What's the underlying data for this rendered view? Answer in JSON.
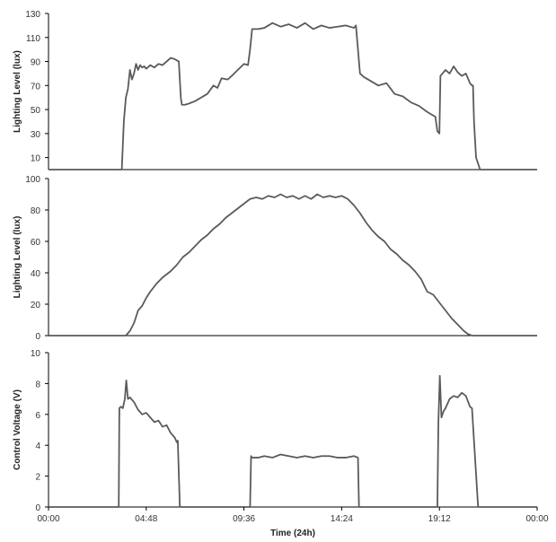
{
  "chart_data": [
    {
      "type": "line",
      "ylabel": "Lighting Level (lux)",
      "ylim": [
        0,
        130
      ],
      "yticks": [
        10,
        30,
        50,
        70,
        90,
        110,
        130
      ],
      "xlim": [
        0,
        24
      ],
      "grid": false,
      "series": [
        {
          "x": [
            0,
            3.6,
            3.62,
            3.7,
            3.8,
            3.9,
            4.0,
            4.1,
            4.2,
            4.3,
            4.4,
            4.5,
            4.6,
            4.7,
            4.8,
            5.0,
            5.2,
            5.4,
            5.6,
            5.8,
            6.0,
            6.2,
            6.4,
            6.5,
            6.55,
            6.7,
            6.9,
            7.2,
            7.5,
            7.8,
            8.1,
            8.3,
            8.5,
            8.8,
            9.0,
            9.3,
            9.6,
            9.8,
            9.9,
            10.0,
            10.3,
            10.6,
            11.0,
            11.4,
            11.8,
            12.2,
            12.6,
            13.0,
            13.4,
            13.8,
            14.2,
            14.6,
            15.0,
            15.1,
            15.2,
            15.3,
            15.5,
            15.8,
            16.2,
            16.6,
            17.0,
            17.4,
            17.8,
            18.2,
            18.6,
            19.0,
            19.1,
            19.2,
            19.25,
            19.5,
            19.7,
            19.9,
            20.1,
            20.3,
            20.5,
            20.7,
            20.8,
            20.85,
            20.9,
            21.0,
            21.2,
            24
          ],
          "y": [
            0,
            0,
            8,
            40,
            60,
            67,
            83,
            75,
            80,
            88,
            83,
            87,
            85,
            86,
            84,
            87,
            85,
            88,
            87,
            90,
            93,
            92,
            90,
            60,
            54,
            54,
            55,
            57,
            60,
            63,
            70,
            68,
            76,
            75,
            78,
            83,
            88,
            87,
            100,
            117,
            117,
            118,
            122,
            119,
            121,
            118,
            122,
            117,
            120,
            118,
            119,
            120,
            118,
            120,
            100,
            80,
            77,
            74,
            70,
            72,
            63,
            61,
            56,
            53,
            48,
            44,
            32,
            30,
            78,
            83,
            80,
            86,
            81,
            78,
            80,
            72,
            70,
            70,
            40,
            10,
            0,
            0
          ]
        }
      ]
    },
    {
      "type": "line",
      "ylabel": "Lighting Level (lux)",
      "ylim": [
        0,
        100
      ],
      "yticks": [
        0,
        20,
        40,
        60,
        80,
        100
      ],
      "xlim": [
        0,
        24
      ],
      "grid": false,
      "series": [
        {
          "x": [
            0,
            3.8,
            4.0,
            4.2,
            4.4,
            4.6,
            4.8,
            5.0,
            5.3,
            5.6,
            6.0,
            6.3,
            6.6,
            6.9,
            7.2,
            7.5,
            7.8,
            8.1,
            8.4,
            8.7,
            9.0,
            9.3,
            9.6,
            9.9,
            10.2,
            10.5,
            10.8,
            11.1,
            11.4,
            11.7,
            12.0,
            12.3,
            12.6,
            12.9,
            13.2,
            13.5,
            13.8,
            14.1,
            14.4,
            14.7,
            15.0,
            15.3,
            15.6,
            15.9,
            16.2,
            16.5,
            16.8,
            17.1,
            17.4,
            17.7,
            18.0,
            18.3,
            18.6,
            18.9,
            19.2,
            19.5,
            19.8,
            20.1,
            20.4,
            20.6,
            20.8,
            21.0,
            24
          ],
          "y": [
            0,
            0,
            3,
            8,
            16,
            19,
            24,
            28,
            33,
            37,
            41,
            45,
            50,
            53,
            57,
            61,
            64,
            68,
            71,
            75,
            78,
            81,
            84,
            87,
            88,
            87,
            89,
            88,
            90,
            88,
            89,
            87,
            89,
            87,
            90,
            88,
            89,
            88,
            89,
            87,
            83,
            78,
            72,
            67,
            63,
            60,
            55,
            52,
            48,
            45,
            41,
            36,
            28,
            26,
            21,
            16,
            11,
            7,
            3,
            1,
            0,
            0,
            0
          ]
        }
      ]
    },
    {
      "type": "line",
      "ylabel": "Control Voltage (V)",
      "xlabel": "Time (24h)",
      "ylim": [
        0,
        10
      ],
      "yticks": [
        0,
        2,
        4,
        6,
        8,
        10
      ],
      "xlim": [
        0,
        24
      ],
      "xticks": [
        "00:00",
        "04:48",
        "09:36",
        "14:24",
        "19:12",
        "00:00"
      ],
      "grid": false,
      "series": [
        {
          "x": [
            0,
            3.45,
            3.48,
            3.55,
            3.65,
            3.75,
            3.82,
            3.9,
            4.0,
            4.2,
            4.4,
            4.6,
            4.8,
            5.0,
            5.2,
            5.4,
            5.6,
            5.8,
            6.0,
            6.2,
            6.3,
            6.35,
            6.45,
            6.5,
            7.0,
            7.5,
            8.0,
            8.5,
            9.0,
            9.9,
            9.95,
            10.0,
            10.3,
            10.6,
            11.0,
            11.4,
            11.8,
            12.2,
            12.6,
            13.0,
            13.4,
            13.8,
            14.2,
            14.6,
            15.0,
            15.2,
            15.25,
            15.5,
            16.5,
            18.0,
            19.1,
            19.15,
            19.22,
            19.3,
            19.4,
            19.5,
            19.7,
            19.9,
            20.1,
            20.3,
            20.5,
            20.7,
            20.8,
            21.1,
            24
          ],
          "y": [
            0,
            0,
            6.4,
            6.5,
            6.4,
            7.0,
            8.2,
            7.0,
            7.1,
            6.8,
            6.3,
            6.0,
            6.1,
            5.8,
            5.5,
            5.6,
            5.2,
            5.3,
            4.8,
            4.5,
            4.2,
            4.3,
            0.05,
            0,
            0,
            0,
            0,
            0,
            0,
            0,
            3.3,
            3.2,
            3.2,
            3.3,
            3.2,
            3.4,
            3.3,
            3.2,
            3.3,
            3.2,
            3.3,
            3.3,
            3.2,
            3.2,
            3.3,
            3.2,
            0,
            0,
            0,
            0,
            0,
            5.5,
            8.5,
            5.8,
            6.2,
            6.4,
            7.0,
            7.2,
            7.1,
            7.4,
            7.2,
            6.5,
            6.4,
            0,
            0
          ]
        }
      ]
    }
  ]
}
